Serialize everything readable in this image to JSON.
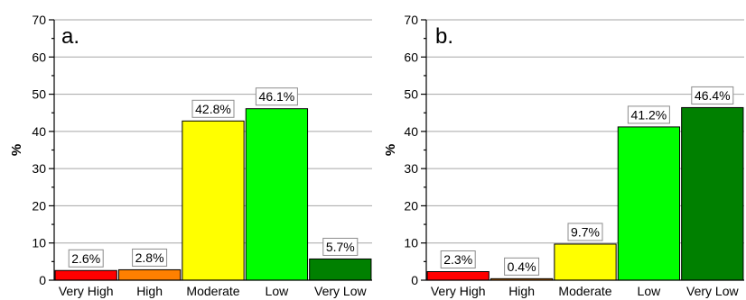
{
  "chart_data": [
    {
      "type": "bar",
      "panel_label": "a.",
      "ylabel": "%",
      "ylim": [
        0,
        70
      ],
      "yticks": [
        0,
        10,
        20,
        30,
        40,
        50,
        60,
        70
      ],
      "grid": true,
      "categories": [
        "Very High",
        "High",
        "Moderate",
        "Low",
        "Very Low"
      ],
      "values": [
        2.6,
        2.8,
        42.8,
        46.1,
        5.7
      ],
      "data_labels": [
        "2.6%",
        "2.8%",
        "42.8%",
        "46.1%",
        "5.7%"
      ],
      "colors": [
        "#ff0000",
        "#ff8000",
        "#ffff00",
        "#00ff00",
        "#008000"
      ]
    },
    {
      "type": "bar",
      "panel_label": "b.",
      "ylabel": "%",
      "ylim": [
        0,
        70
      ],
      "yticks": [
        0,
        10,
        20,
        30,
        40,
        50,
        60,
        70
      ],
      "grid": true,
      "categories": [
        "Very High",
        "High",
        "Moderate",
        "Low",
        "Very Low"
      ],
      "values": [
        2.3,
        0.4,
        9.7,
        41.2,
        46.4
      ],
      "data_labels": [
        "2.3%",
        "0.4%",
        "9.7%",
        "41.2%",
        "46.4%"
      ],
      "colors": [
        "#ff0000",
        "#ff8000",
        "#ffff00",
        "#00ff00",
        "#008000"
      ]
    }
  ]
}
